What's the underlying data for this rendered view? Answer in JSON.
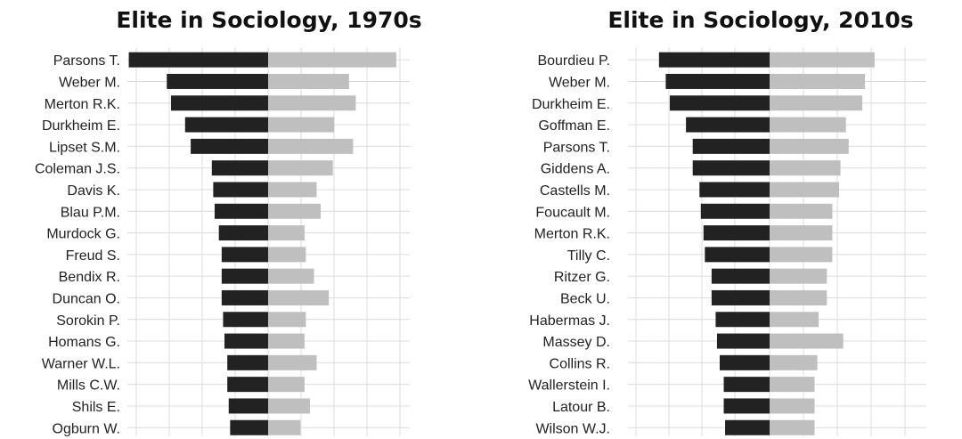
{
  "colors": {
    "left_bar": "#222222",
    "right_bar": "#bfbfbf",
    "grid": "#dcdcdc",
    "text": "#222222"
  },
  "chart_data": [
    {
      "type": "bar",
      "orientation": "horizontal-diverging",
      "title": "Elite in Sociology, 1970s",
      "xlim": [
        -1.0,
        1.05
      ],
      "categories": [
        "Parsons T.",
        "Weber M.",
        "Merton R.K.",
        "Durkheim E.",
        "Lipset S.M.",
        "Coleman J.S.",
        "Davis K.",
        "Blau P.M.",
        "Murdock G.",
        "Freud S.",
        "Bendix R.",
        "Duncan O.",
        "Sorokin P.",
        "Homans G.",
        "Warner W.L.",
        "Mills C.W.",
        "Shils E.",
        "Ogburn W."
      ],
      "series": [
        {
          "name": "left",
          "values": [
            0.99,
            0.72,
            0.69,
            0.59,
            0.55,
            0.4,
            0.39,
            0.38,
            0.35,
            0.33,
            0.33,
            0.33,
            0.32,
            0.31,
            0.29,
            0.29,
            0.28,
            0.27
          ]
        },
        {
          "name": "right",
          "values": [
            0.95,
            0.6,
            0.65,
            0.49,
            0.63,
            0.48,
            0.36,
            0.39,
            0.27,
            0.28,
            0.34,
            0.45,
            0.28,
            0.27,
            0.36,
            0.27,
            0.31,
            0.24
          ]
        }
      ]
    },
    {
      "type": "bar",
      "orientation": "horizontal-diverging",
      "title": "Elite in Sociology, 2010s",
      "xlim": [
        -1.05,
        1.15
      ],
      "categories": [
        "Bourdieu P.",
        "Weber M.",
        "Durkheim E.",
        "Goffman E.",
        "Parsons T.",
        "Giddens A.",
        "Castells M.",
        "Foucault M.",
        "Merton R.K.",
        "Tilly C.",
        "Ritzer G.",
        "Beck U.",
        "Habermas J.",
        "Massey D.",
        "Collins R.",
        "Wallerstein I.",
        "Latour B.",
        "Wilson W.J."
      ],
      "series": [
        {
          "name": "left",
          "values": [
            0.82,
            0.77,
            0.74,
            0.62,
            0.57,
            0.57,
            0.52,
            0.51,
            0.49,
            0.48,
            0.43,
            0.43,
            0.4,
            0.39,
            0.37,
            0.34,
            0.34,
            0.33
          ]
        },
        {
          "name": "right",
          "values": [
            0.77,
            0.7,
            0.68,
            0.56,
            0.58,
            0.52,
            0.51,
            0.46,
            0.46,
            0.46,
            0.42,
            0.42,
            0.36,
            0.54,
            0.35,
            0.33,
            0.33,
            0.33
          ]
        }
      ]
    }
  ]
}
